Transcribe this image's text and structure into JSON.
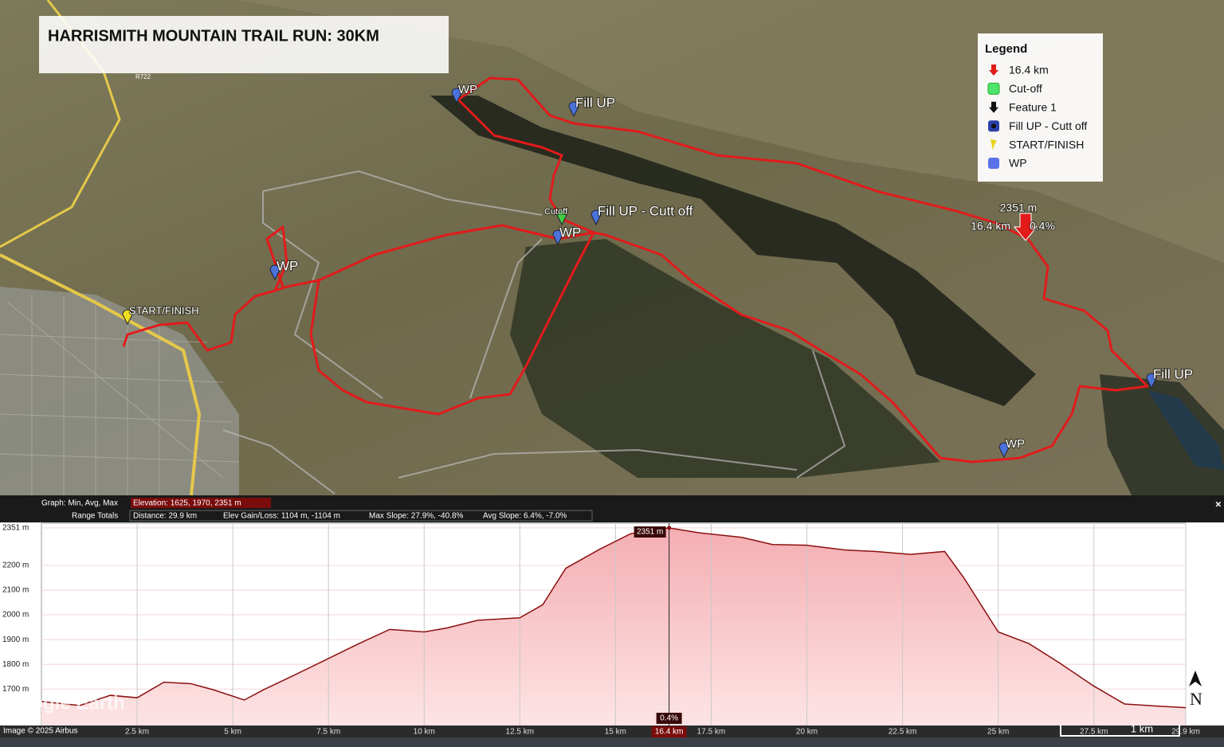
{
  "map": {
    "title": "HARRISMITH MOUNTAIN TRAIL RUN: 30KM",
    "legend": {
      "title": "Legend",
      "items": [
        "16.4 km",
        "Cut-off",
        "Feature 1",
        "Fill UP - Cutt off",
        "START/FINISH",
        "WP"
      ]
    },
    "markers": [
      "WP",
      "Fill UP",
      "Cutoff",
      "Fill UP - Cutt off",
      "WP",
      "WP",
      "START/FINISH",
      "Fill UP",
      "WP"
    ],
    "road_label": "R722",
    "watermark": "Google Earth",
    "credit": "Image © 2025 Airbus",
    "scale_label": "1 km",
    "north_label": "N"
  },
  "profile_stats": {
    "graph_label": "Graph: Min, Avg, Max",
    "elevation": "Elevation: 1625, 1970, 2351 m",
    "range_label": "Range Totals",
    "distance": "Distance: 29.9 km",
    "gain_loss": "Elev Gain/Loss: 1104 m, -1104 m",
    "max_slope": "Max Slope: 27.9%, -40.8%",
    "avg_slope": "Avg Slope: 6.4%, -7.0%"
  },
  "chart_data": {
    "type": "area",
    "x": [
      0,
      1,
      1.8,
      2.5,
      3.2,
      3.9,
      4.5,
      5.3,
      5.8,
      6.6,
      7.4,
      8.3,
      9.1,
      10,
      10.6,
      11.4,
      12.5,
      13.1,
      13.7,
      14.6,
      15.4,
      16.4,
      17.2,
      18.3,
      19.1,
      20,
      21,
      21.8,
      22.7,
      23.6,
      24.1,
      25,
      25.8,
      26.6,
      27.5,
      28.3,
      29.2,
      29.9
    ],
    "values": [
      1650,
      1634,
      1675,
      1665,
      1728,
      1722,
      1697,
      1656,
      1697,
      1756,
      1816,
      1884,
      1941,
      1931,
      1947,
      1978,
      1988,
      2041,
      2188,
      2266,
      2328,
      2351,
      2331,
      2313,
      2284,
      2281,
      2262,
      2256,
      2244,
      2256,
      2150,
      1931,
      1884,
      1806,
      1712,
      1640,
      1631,
      1625
    ],
    "color": "#8b1010",
    "fill": "#f7c6c8",
    "xlim": [
      0,
      29.9
    ],
    "ylim": [
      1553,
      2370
    ],
    "xticks": [
      {
        "value": 2.5,
        "label": "2.5 km"
      },
      {
        "value": 5,
        "label": "5 km"
      },
      {
        "value": 7.5,
        "label": "7.5 km"
      },
      {
        "value": 10,
        "label": "10 km"
      },
      {
        "value": 12.5,
        "label": "12.5 km"
      },
      {
        "value": 15,
        "label": "15 km"
      },
      {
        "value": 17.5,
        "label": "17.5 km"
      },
      {
        "value": 20,
        "label": "20 km"
      },
      {
        "value": 22.5,
        "label": "22.5 km"
      },
      {
        "value": 25,
        "label": "25 km"
      },
      {
        "value": 27.5,
        "label": "27.5 km"
      },
      {
        "value": 29.9,
        "label": "29.9 km"
      }
    ],
    "yticks": [
      {
        "value": 1700,
        "label": "1700 m"
      },
      {
        "value": 1800,
        "label": "1800 m"
      },
      {
        "value": 1900,
        "label": "1900 m"
      },
      {
        "value": 2000,
        "label": "2000 m"
      },
      {
        "value": 2100,
        "label": "2100 m"
      },
      {
        "value": 2200,
        "label": "2200 m"
      },
      {
        "value": 2351,
        "label": "2351 m"
      }
    ],
    "grid": true,
    "cursor": {
      "x": {
        "value": 16.4,
        "label": "16.4 km"
      },
      "elevation": {
        "value": 2351,
        "label": "2351 m"
      },
      "slope": "0.4%"
    }
  }
}
